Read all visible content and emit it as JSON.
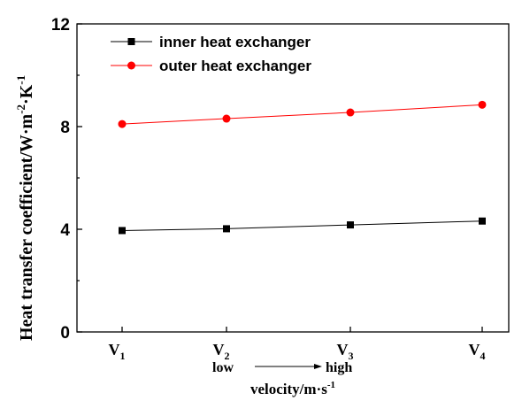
{
  "chart_data": {
    "type": "line",
    "ylabel": "Heat transfer coefficient/W·m⁻²·K⁻¹",
    "ylabel_main": "Heat transfer coefficient/W·m",
    "ylabel_sup1": "-2",
    "ylabel_mid": "·K",
    "ylabel_sup2": "-1",
    "xlabel": "velocity/m·s⁻¹",
    "xlabel_main": "velocity/m·s",
    "xlabel_sup": "-1",
    "categories": [
      {
        "base": "V",
        "sub": "1"
      },
      {
        "base": "V",
        "sub": "2"
      },
      {
        "base": "V",
        "sub": "3"
      },
      {
        "base": "V",
        "sub": "4"
      }
    ],
    "ylim": [
      0,
      12
    ],
    "yticks": [
      "0",
      "4",
      "8",
      "12"
    ],
    "ytick_values": [
      0,
      4,
      8,
      12
    ],
    "annotation_low": "low",
    "annotation_high": "high",
    "legend_position": "top-left",
    "grid": false,
    "series": [
      {
        "name": "inner heat exchanger",
        "marker": "square",
        "color": "#000000",
        "values": [
          3.95,
          4.02,
          4.17,
          4.32
        ]
      },
      {
        "name": "outer heat exchanger",
        "marker": "circle",
        "color": "#ff0000",
        "values": [
          8.1,
          8.31,
          8.55,
          8.85
        ]
      }
    ]
  }
}
